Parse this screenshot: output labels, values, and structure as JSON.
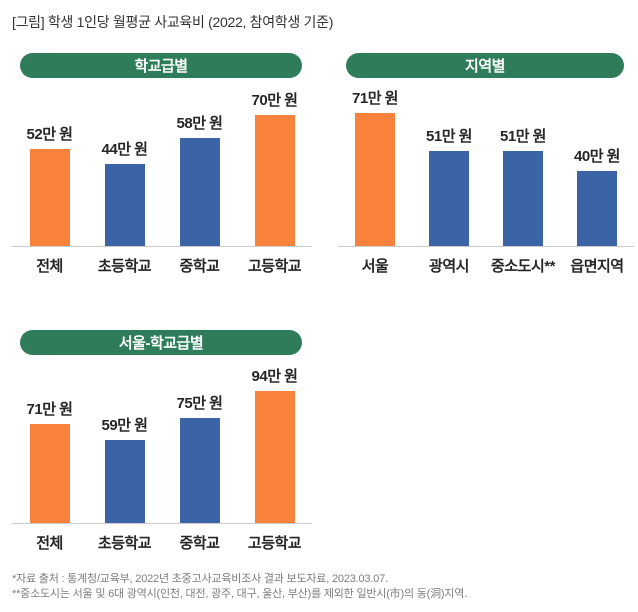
{
  "page_title": "[그림] 학생 1인당 월평균 사교육비 (2022, 참여학생 기준)",
  "colors": {
    "orange": "#F8813B",
    "blue": "#3A64A6",
    "green": "#2E7C59",
    "axis_line": "#CCCCCC",
    "value_label": "#262626",
    "footnote": "#7D7D7D"
  },
  "chart_data": [
    {
      "type": "bar",
      "title": "학교급별",
      "categories": [
        "전체",
        "초등학교",
        "중학교",
        "고등학교"
      ],
      "values": [
        52,
        44,
        58,
        70
      ],
      "labels": [
        "52만 원",
        "44만 원",
        "58만 원",
        "70만 원"
      ],
      "bar_colors": [
        "orange",
        "blue",
        "blue",
        "orange"
      ],
      "unit": "만 원",
      "ylim": [
        0,
        75
      ],
      "grid": false,
      "legend": "none"
    },
    {
      "type": "bar",
      "title": "지역별",
      "categories": [
        "서울",
        "광역시",
        "중소도시**",
        "읍면지역"
      ],
      "values": [
        71,
        51,
        51,
        40
      ],
      "labels": [
        "71만 원",
        "51만 원",
        "51만 원",
        "40만 원"
      ],
      "bar_colors": [
        "orange",
        "blue",
        "blue",
        "blue"
      ],
      "unit": "만 원",
      "ylim": [
        0,
        75
      ],
      "grid": false,
      "legend": "none"
    },
    {
      "type": "bar",
      "title": "서울-학교급별",
      "categories": [
        "전체",
        "초등학교",
        "중학교",
        "고등학교"
      ],
      "values": [
        71,
        59,
        75,
        94
      ],
      "labels": [
        "71만 원",
        "59만 원",
        "75만 원",
        "94만 원"
      ],
      "bar_colors": [
        "orange",
        "blue",
        "blue",
        "orange"
      ],
      "unit": "만 원",
      "ylim": [
        0,
        100
      ],
      "grid": false,
      "legend": "none"
    }
  ],
  "footnotes": [
    "*자료 출처 : 통계청/교육부, 2022년 초중고사교육비조사 결과 보도자료, 2023.03.07.",
    "**중소도시는 서울 및 6대 광역시(인천, 대전, 광주, 대구, 울산, 부산)를 제외한 일반시(市)의 동(洞)지역."
  ]
}
